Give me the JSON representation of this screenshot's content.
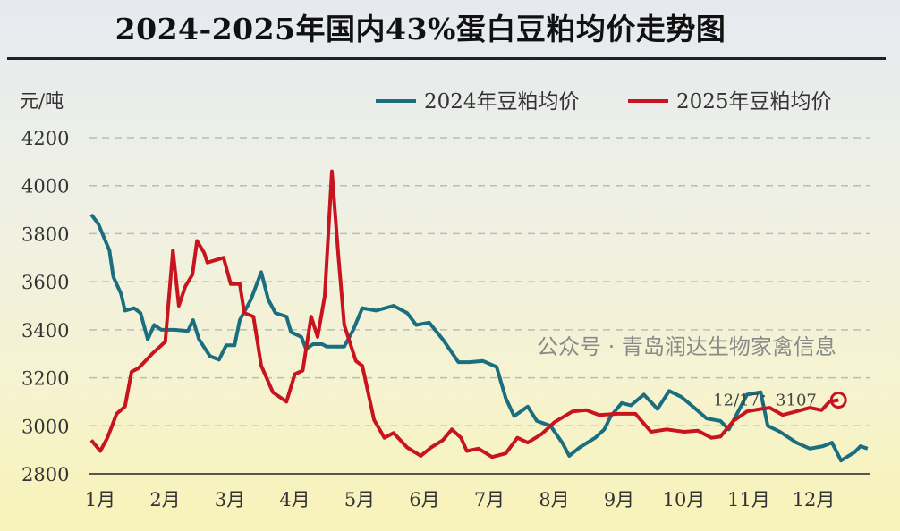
{
  "chart_data": {
    "type": "line",
    "title": "2024-2025年国内43%蛋白豆粕均价走势图",
    "ylabel": "元/吨",
    "xlabel": "",
    "ylim": [
      2800,
      4200
    ],
    "yticks": [
      "4200",
      "4000",
      "3800",
      "3600",
      "3400",
      "3200",
      "3000",
      "2800"
    ],
    "x_unit": "month (decimal, 1 = start of 1月)",
    "xlim": [
      1,
      13
    ],
    "xticks": [
      "1月",
      "2月",
      "3月",
      "4月",
      "5月",
      "6月",
      "7月",
      "8月",
      "9月",
      "10月",
      "11月",
      "12月"
    ],
    "grid": "horizontal dashed",
    "legend": "top-right",
    "series": [
      {
        "name": "2024年豆粕均价",
        "color": "#1a6e80",
        "x": [
          1.0,
          1.11,
          1.28,
          1.34,
          1.46,
          1.52,
          1.66,
          1.76,
          1.87,
          1.97,
          2.08,
          2.28,
          2.49,
          2.57,
          2.66,
          2.83,
          2.97,
          3.08,
          3.21,
          3.29,
          3.46,
          3.62,
          3.73,
          3.84,
          4.01,
          4.08,
          4.24,
          4.31,
          4.42,
          4.56,
          4.63,
          4.9,
          5.04,
          5.18,
          5.39,
          5.66,
          5.87,
          6.01,
          6.21,
          6.42,
          6.66,
          6.83,
          7.04,
          7.25,
          7.39,
          7.52,
          7.73,
          7.87,
          8.08,
          8.26,
          8.37,
          8.53,
          8.77,
          8.91,
          9.01,
          9.18,
          9.32,
          9.52,
          9.73,
          9.91,
          10.1,
          10.32,
          10.49,
          10.7,
          10.83,
          11.11,
          11.32,
          11.43,
          11.62,
          11.87,
          12.08,
          12.28,
          12.42,
          12.56,
          12.77,
          12.86,
          12.97
        ],
        "values": [
          3880,
          3840,
          3730,
          3620,
          3550,
          3480,
          3490,
          3470,
          3360,
          3420,
          3400,
          3400,
          3395,
          3440,
          3360,
          3290,
          3275,
          3335,
          3335,
          3440,
          3525,
          3640,
          3525,
          3470,
          3455,
          3390,
          3370,
          3320,
          3340,
          3340,
          3330,
          3330,
          3400,
          3490,
          3480,
          3500,
          3470,
          3420,
          3430,
          3360,
          3265,
          3265,
          3270,
          3245,
          3115,
          3040,
          3080,
          3020,
          3000,
          2930,
          2875,
          2910,
          2950,
          2985,
          3040,
          3095,
          3085,
          3130,
          3070,
          3145,
          3120,
          3070,
          3030,
          3020,
          2985,
          3130,
          3140,
          3000,
          2975,
          2930,
          2905,
          2915,
          2930,
          2855,
          2890,
          2915,
          2905
        ]
      },
      {
        "name": "2025年豆粕均价",
        "color": "#c8141e",
        "x": [
          1.0,
          1.14,
          1.25,
          1.39,
          1.52,
          1.62,
          1.73,
          1.94,
          2.14,
          2.26,
          2.35,
          2.45,
          2.56,
          2.63,
          2.74,
          2.79,
          3.04,
          3.15,
          3.29,
          3.36,
          3.5,
          3.62,
          3.8,
          4.01,
          4.14,
          4.26,
          4.39,
          4.49,
          4.6,
          4.71,
          4.81,
          4.9,
          5.08,
          5.18,
          5.36,
          5.52,
          5.66,
          5.87,
          6.08,
          6.24,
          6.42,
          6.56,
          6.7,
          6.79,
          6.97,
          7.18,
          7.39,
          7.57,
          7.73,
          7.94,
          8.14,
          8.42,
          8.63,
          8.83,
          9.11,
          9.39,
          9.63,
          9.87,
          10.14,
          10.35,
          10.56,
          10.7,
          10.9,
          11.11,
          11.32,
          11.46,
          11.66,
          11.87,
          12.08,
          12.26,
          12.38,
          12.52
        ],
        "values": [
          2940,
          2895,
          2950,
          3050,
          3080,
          3225,
          3240,
          3300,
          3350,
          3730,
          3500,
          3580,
          3630,
          3770,
          3720,
          3680,
          3700,
          3590,
          3590,
          3470,
          3455,
          3250,
          3140,
          3100,
          3215,
          3230,
          3455,
          3370,
          3540,
          4060,
          3710,
          3420,
          3270,
          3250,
          3025,
          2950,
          2970,
          2910,
          2875,
          2910,
          2940,
          2985,
          2950,
          2895,
          2905,
          2870,
          2885,
          2950,
          2930,
          2965,
          3015,
          3060,
          3065,
          3045,
          3050,
          3050,
          2975,
          2985,
          2975,
          2980,
          2950,
          2955,
          3020,
          3060,
          3070,
          3075,
          3045,
          3060,
          3075,
          3065,
          3100,
          3107
        ]
      }
    ],
    "annotation": {
      "text": "12/17：3107",
      "series": "2025年豆粕均价",
      "x": 12.52,
      "value": 3107
    }
  },
  "watermark": "公众号 · 青岛润达生物家禽信息"
}
